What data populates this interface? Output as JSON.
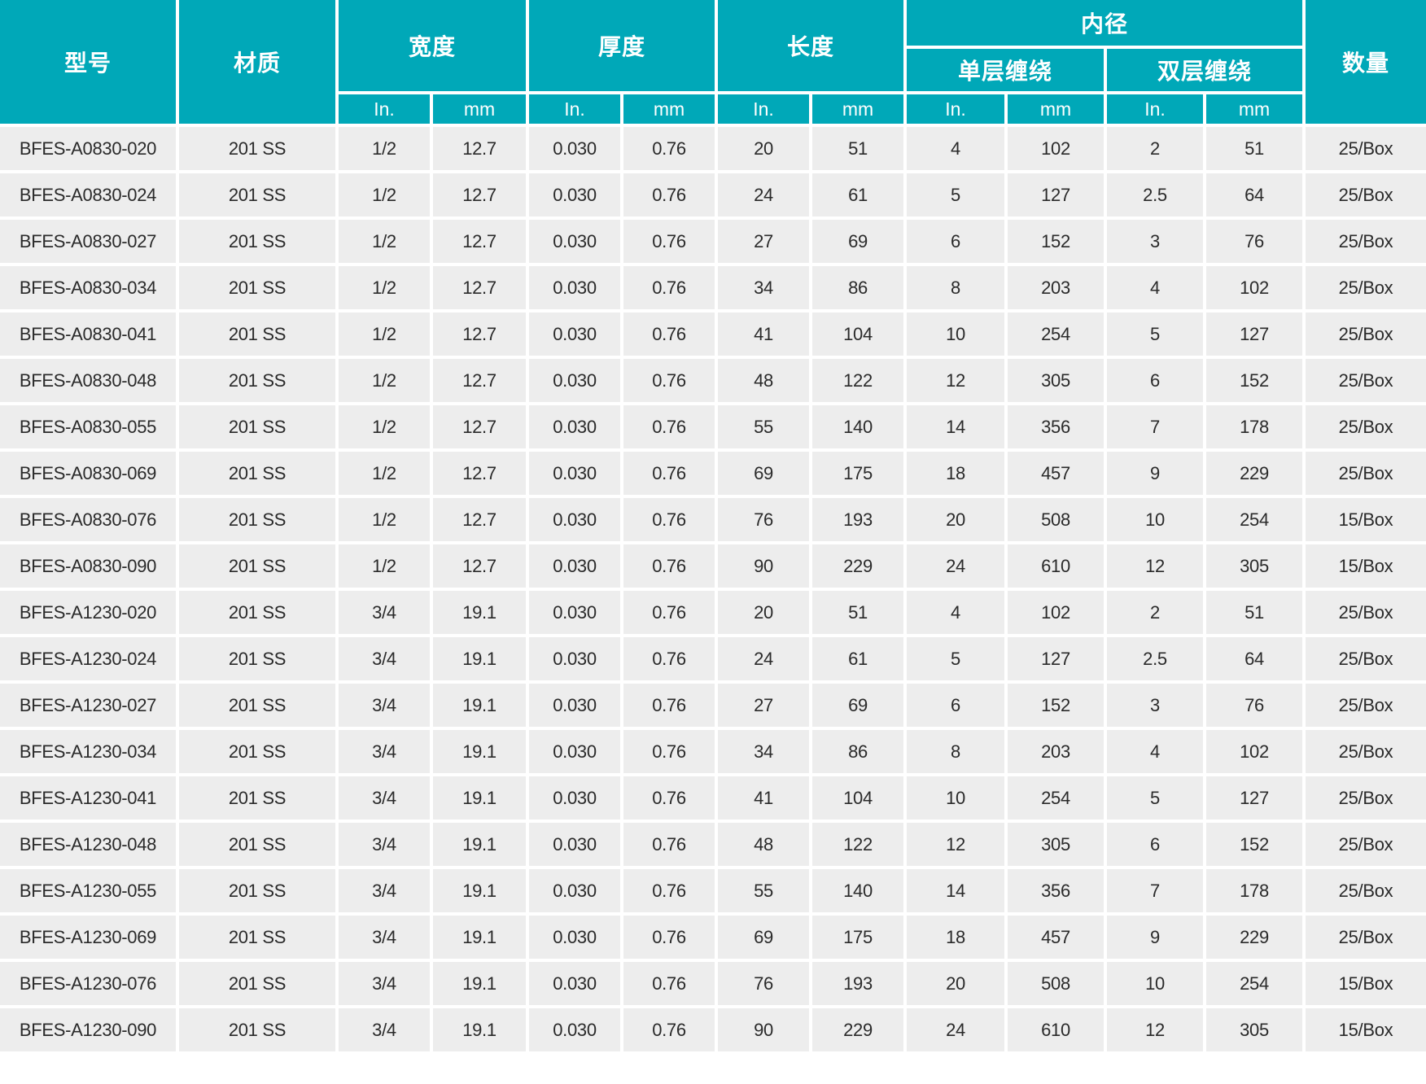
{
  "colors": {
    "header_bg": "#00a8b8",
    "header_text": "#ffffff",
    "row_bg": "#ededed",
    "row_text": "#2a2a2a",
    "divider": "#ffffff"
  },
  "table": {
    "headers": {
      "model": "型号",
      "material": "材质",
      "width": "宽度",
      "thickness": "厚度",
      "length": "长度",
      "inner_diameter": "内径",
      "single_wrap": "单层缠绕",
      "double_wrap": "双层缠绕",
      "quantity": "数量",
      "unit_in": "In.",
      "unit_mm": "mm"
    },
    "rows": [
      [
        "BFES-A0830-020",
        "201 SS",
        "1/2",
        "12.7",
        "0.030",
        "0.76",
        "20",
        "51",
        "4",
        "102",
        "2",
        "51",
        "25/Box"
      ],
      [
        "BFES-A0830-024",
        "201 SS",
        "1/2",
        "12.7",
        "0.030",
        "0.76",
        "24",
        "61",
        "5",
        "127",
        "2.5",
        "64",
        "25/Box"
      ],
      [
        "BFES-A0830-027",
        "201 SS",
        "1/2",
        "12.7",
        "0.030",
        "0.76",
        "27",
        "69",
        "6",
        "152",
        "3",
        "76",
        "25/Box"
      ],
      [
        "BFES-A0830-034",
        "201 SS",
        "1/2",
        "12.7",
        "0.030",
        "0.76",
        "34",
        "86",
        "8",
        "203",
        "4",
        "102",
        "25/Box"
      ],
      [
        "BFES-A0830-041",
        "201 SS",
        "1/2",
        "12.7",
        "0.030",
        "0.76",
        "41",
        "104",
        "10",
        "254",
        "5",
        "127",
        "25/Box"
      ],
      [
        "BFES-A0830-048",
        "201 SS",
        "1/2",
        "12.7",
        "0.030",
        "0.76",
        "48",
        "122",
        "12",
        "305",
        "6",
        "152",
        "25/Box"
      ],
      [
        "BFES-A0830-055",
        "201 SS",
        "1/2",
        "12.7",
        "0.030",
        "0.76",
        "55",
        "140",
        "14",
        "356",
        "7",
        "178",
        "25/Box"
      ],
      [
        "BFES-A0830-069",
        "201 SS",
        "1/2",
        "12.7",
        "0.030",
        "0.76",
        "69",
        "175",
        "18",
        "457",
        "9",
        "229",
        "25/Box"
      ],
      [
        "BFES-A0830-076",
        "201 SS",
        "1/2",
        "12.7",
        "0.030",
        "0.76",
        "76",
        "193",
        "20",
        "508",
        "10",
        "254",
        "15/Box"
      ],
      [
        "BFES-A0830-090",
        "201 SS",
        "1/2",
        "12.7",
        "0.030",
        "0.76",
        "90",
        "229",
        "24",
        "610",
        "12",
        "305",
        "15/Box"
      ],
      [
        "BFES-A1230-020",
        "201 SS",
        "3/4",
        "19.1",
        "0.030",
        "0.76",
        "20",
        "51",
        "4",
        "102",
        "2",
        "51",
        "25/Box"
      ],
      [
        "BFES-A1230-024",
        "201 SS",
        "3/4",
        "19.1",
        "0.030",
        "0.76",
        "24",
        "61",
        "5",
        "127",
        "2.5",
        "64",
        "25/Box"
      ],
      [
        "BFES-A1230-027",
        "201 SS",
        "3/4",
        "19.1",
        "0.030",
        "0.76",
        "27",
        "69",
        "6",
        "152",
        "3",
        "76",
        "25/Box"
      ],
      [
        "BFES-A1230-034",
        "201 SS",
        "3/4",
        "19.1",
        "0.030",
        "0.76",
        "34",
        "86",
        "8",
        "203",
        "4",
        "102",
        "25/Box"
      ],
      [
        "BFES-A1230-041",
        "201 SS",
        "3/4",
        "19.1",
        "0.030",
        "0.76",
        "41",
        "104",
        "10",
        "254",
        "5",
        "127",
        "25/Box"
      ],
      [
        "BFES-A1230-048",
        "201 SS",
        "3/4",
        "19.1",
        "0.030",
        "0.76",
        "48",
        "122",
        "12",
        "305",
        "6",
        "152",
        "25/Box"
      ],
      [
        "BFES-A1230-055",
        "201 SS",
        "3/4",
        "19.1",
        "0.030",
        "0.76",
        "55",
        "140",
        "14",
        "356",
        "7",
        "178",
        "25/Box"
      ],
      [
        "BFES-A1230-069",
        "201 SS",
        "3/4",
        "19.1",
        "0.030",
        "0.76",
        "69",
        "175",
        "18",
        "457",
        "9",
        "229",
        "25/Box"
      ],
      [
        "BFES-A1230-076",
        "201 SS",
        "3/4",
        "19.1",
        "0.030",
        "0.76",
        "76",
        "193",
        "20",
        "508",
        "10",
        "254",
        "15/Box"
      ],
      [
        "BFES-A1230-090",
        "201 SS",
        "3/4",
        "19.1",
        "0.030",
        "0.76",
        "90",
        "229",
        "24",
        "610",
        "12",
        "305",
        "15/Box"
      ]
    ]
  }
}
